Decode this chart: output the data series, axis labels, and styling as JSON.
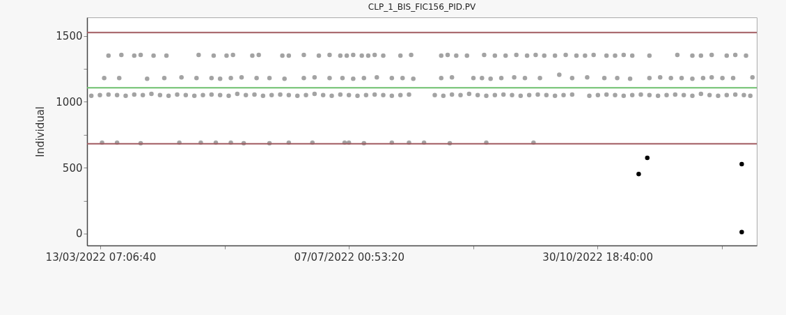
{
  "chart_data": {
    "type": "scatter",
    "title": "CLP_1_BIS_FIC156_PID.PV",
    "ylabel": "Individual",
    "xlim": [
      "2022-03-07",
      "2023-01-13"
    ],
    "xticks": [
      {
        "value": "2022-03-13T07:06:40",
        "label": "13/03/2022 07:06:40"
      },
      {
        "value": "2022-05-10T04:00:00",
        "label": null
      },
      {
        "value": "2022-07-07T00:53:20",
        "label": "07/07/2022 00:53:20"
      },
      {
        "value": "2022-09-02T21:46:40",
        "label": null
      },
      {
        "value": "2022-10-30T18:40:00",
        "label": "30/10/2022 18:40:00"
      },
      {
        "value": "2022-12-27T15:33:20",
        "label": null
      }
    ],
    "ylim": [
      -90,
      1640
    ],
    "yticks": [
      0,
      {
        "value": 250,
        "label": null
      },
      500,
      {
        "value": 750,
        "label": null
      },
      1000,
      {
        "value": 1250,
        "label": null
      },
      1500
    ],
    "marker": "circle",
    "grid": false,
    "legend": false,
    "ref_lines": [
      {
        "axis": "y",
        "value": 1525,
        "color": "#a05a5f"
      },
      {
        "axis": "y",
        "value": 1106,
        "color": "#6cbf6c"
      },
      {
        "axis": "y",
        "value": 681,
        "color": "#a05a5f"
      }
    ],
    "series": [
      {
        "color": "#a3a3a3",
        "x": [
          "2022-03-09",
          "2022-03-13",
          "2022-03-17",
          "2022-03-21",
          "2022-03-25",
          "2022-03-29",
          "2022-04-02",
          "2022-04-06",
          "2022-04-10",
          "2022-04-14",
          "2022-04-18",
          "2022-04-22",
          "2022-04-26",
          "2022-04-30",
          "2022-05-04",
          "2022-05-08",
          "2022-05-12",
          "2022-05-16",
          "2022-05-20",
          "2022-05-24",
          "2022-05-28",
          "2022-06-01",
          "2022-06-05",
          "2022-06-09",
          "2022-06-13",
          "2022-06-17",
          "2022-06-21",
          "2022-06-25",
          "2022-06-29",
          "2022-07-03",
          "2022-07-07",
          "2022-07-11",
          "2022-07-15",
          "2022-07-19",
          "2022-07-23",
          "2022-07-27",
          "2022-07-31",
          "2022-08-04",
          "2022-08-16",
          "2022-08-20",
          "2022-08-24",
          "2022-08-28",
          "2022-09-01",
          "2022-09-05",
          "2022-09-09",
          "2022-09-13",
          "2022-09-17",
          "2022-09-21",
          "2022-09-25",
          "2022-09-29",
          "2022-10-03",
          "2022-10-07",
          "2022-10-11",
          "2022-10-15",
          "2022-10-19",
          "2022-10-27",
          "2022-10-31",
          "2022-11-04",
          "2022-11-08",
          "2022-11-12",
          "2022-11-16",
          "2022-11-20",
          "2022-11-24",
          "2022-11-28",
          "2022-12-02",
          "2022-12-06",
          "2022-12-10",
          "2022-12-14",
          "2022-12-18",
          "2022-12-22",
          "2022-12-26",
          "2022-12-30",
          "2023-01-03",
          "2023-01-07",
          "2023-01-10"
        ],
        "values": [
          1045,
          1050,
          1055,
          1050,
          1045,
          1055,
          1050,
          1060,
          1050,
          1045,
          1055,
          1050,
          1045,
          1050,
          1055,
          1050,
          1045,
          1060,
          1050,
          1055,
          1045,
          1050,
          1055,
          1050,
          1045,
          1050,
          1060,
          1050,
          1045,
          1055,
          1050,
          1045,
          1050,
          1055,
          1050,
          1045,
          1050,
          1055,
          1050,
          1045,
          1055,
          1050,
          1060,
          1050,
          1045,
          1050,
          1055,
          1050,
          1045,
          1050,
          1055,
          1050,
          1045,
          1050,
          1055,
          1045,
          1050,
          1055,
          1050,
          1045,
          1050,
          1055,
          1050,
          1045,
          1050,
          1055,
          1050,
          1045,
          1060,
          1050,
          1045,
          1050,
          1055,
          1050,
          1045
        ]
      },
      {
        "color": "#a3a3a3",
        "x": [
          "2022-03-15",
          "2022-03-22",
          "2022-04-04",
          "2022-04-12",
          "2022-04-20",
          "2022-04-27",
          "2022-05-04",
          "2022-05-08",
          "2022-05-13",
          "2022-05-18",
          "2022-05-25",
          "2022-05-31",
          "2022-06-07",
          "2022-06-16",
          "2022-06-21",
          "2022-06-28",
          "2022-07-04",
          "2022-07-09",
          "2022-07-14",
          "2022-07-20",
          "2022-07-27",
          "2022-08-01",
          "2022-08-06",
          "2022-08-19",
          "2022-08-24",
          "2022-09-03",
          "2022-09-07",
          "2022-09-11",
          "2022-09-16",
          "2022-09-22",
          "2022-09-27",
          "2022-10-04",
          "2022-10-13",
          "2022-10-19",
          "2022-10-26",
          "2022-11-03",
          "2022-11-09",
          "2022-11-15",
          "2022-11-24",
          "2022-11-29",
          "2022-12-04",
          "2022-12-09",
          "2022-12-14",
          "2022-12-19",
          "2022-12-23",
          "2022-12-28",
          "2023-01-02",
          "2023-01-11"
        ],
        "values": [
          1180,
          1180,
          1175,
          1180,
          1185,
          1180,
          1180,
          1175,
          1180,
          1185,
          1180,
          1180,
          1175,
          1180,
          1185,
          1180,
          1180,
          1175,
          1180,
          1185,
          1180,
          1180,
          1175,
          1180,
          1185,
          1180,
          1180,
          1175,
          1180,
          1185,
          1180,
          1180,
          1205,
          1180,
          1185,
          1180,
          1180,
          1175,
          1180,
          1185,
          1180,
          1180,
          1175,
          1180,
          1185,
          1180,
          1180,
          1185
        ]
      },
      {
        "color": "#a3a3a3",
        "x": [
          "2022-03-17",
          "2022-03-23",
          "2022-03-29",
          "2022-04-01",
          "2022-04-07",
          "2022-04-13",
          "2022-04-28",
          "2022-05-05",
          "2022-05-11",
          "2022-05-14",
          "2022-05-23",
          "2022-05-26",
          "2022-06-06",
          "2022-06-09",
          "2022-06-16",
          "2022-06-23",
          "2022-06-28",
          "2022-07-03",
          "2022-07-06",
          "2022-07-09",
          "2022-07-13",
          "2022-07-16",
          "2022-07-19",
          "2022-07-23",
          "2022-07-31",
          "2022-08-05",
          "2022-08-19",
          "2022-08-22",
          "2022-08-26",
          "2022-08-31",
          "2022-09-08",
          "2022-09-13",
          "2022-09-18",
          "2022-09-23",
          "2022-09-28",
          "2022-10-02",
          "2022-10-06",
          "2022-10-11",
          "2022-10-16",
          "2022-10-21",
          "2022-10-25",
          "2022-10-29",
          "2022-11-04",
          "2022-11-08",
          "2022-11-12",
          "2022-11-16",
          "2022-11-24",
          "2022-12-07",
          "2022-12-14",
          "2022-12-18",
          "2022-12-23",
          "2022-12-30",
          "2023-01-03",
          "2023-01-08"
        ],
        "values": [
          1350,
          1355,
          1350,
          1355,
          1350,
          1350,
          1355,
          1350,
          1350,
          1355,
          1350,
          1355,
          1350,
          1350,
          1355,
          1350,
          1355,
          1350,
          1350,
          1355,
          1350,
          1350,
          1355,
          1350,
          1350,
          1355,
          1350,
          1355,
          1350,
          1350,
          1355,
          1350,
          1350,
          1355,
          1350,
          1355,
          1350,
          1350,
          1355,
          1350,
          1350,
          1355,
          1350,
          1350,
          1355,
          1350,
          1350,
          1355,
          1350,
          1350,
          1355,
          1350,
          1355,
          1350
        ]
      },
      {
        "color": "#a3a3a3",
        "x": [
          "2022-03-14",
          "2022-03-21",
          "2022-04-01",
          "2022-04-19",
          "2022-04-29",
          "2022-05-06",
          "2022-05-13",
          "2022-05-19",
          "2022-05-31",
          "2022-06-09",
          "2022-06-20",
          "2022-07-05",
          "2022-07-07",
          "2022-07-14",
          "2022-07-27",
          "2022-08-04",
          "2022-08-11",
          "2022-08-23",
          "2022-09-09",
          "2022-10-01"
        ],
        "values": [
          690,
          690,
          685,
          690,
          690,
          690,
          690,
          685,
          685,
          690,
          690,
          690,
          690,
          685,
          690,
          690,
          690,
          685,
          690,
          690
        ]
      },
      {
        "color": "#000000",
        "x": [
          "2022-11-19",
          "2022-11-23",
          "2023-01-06",
          "2023-01-06"
        ],
        "values": [
          452,
          574,
          527,
          11
        ]
      }
    ]
  }
}
